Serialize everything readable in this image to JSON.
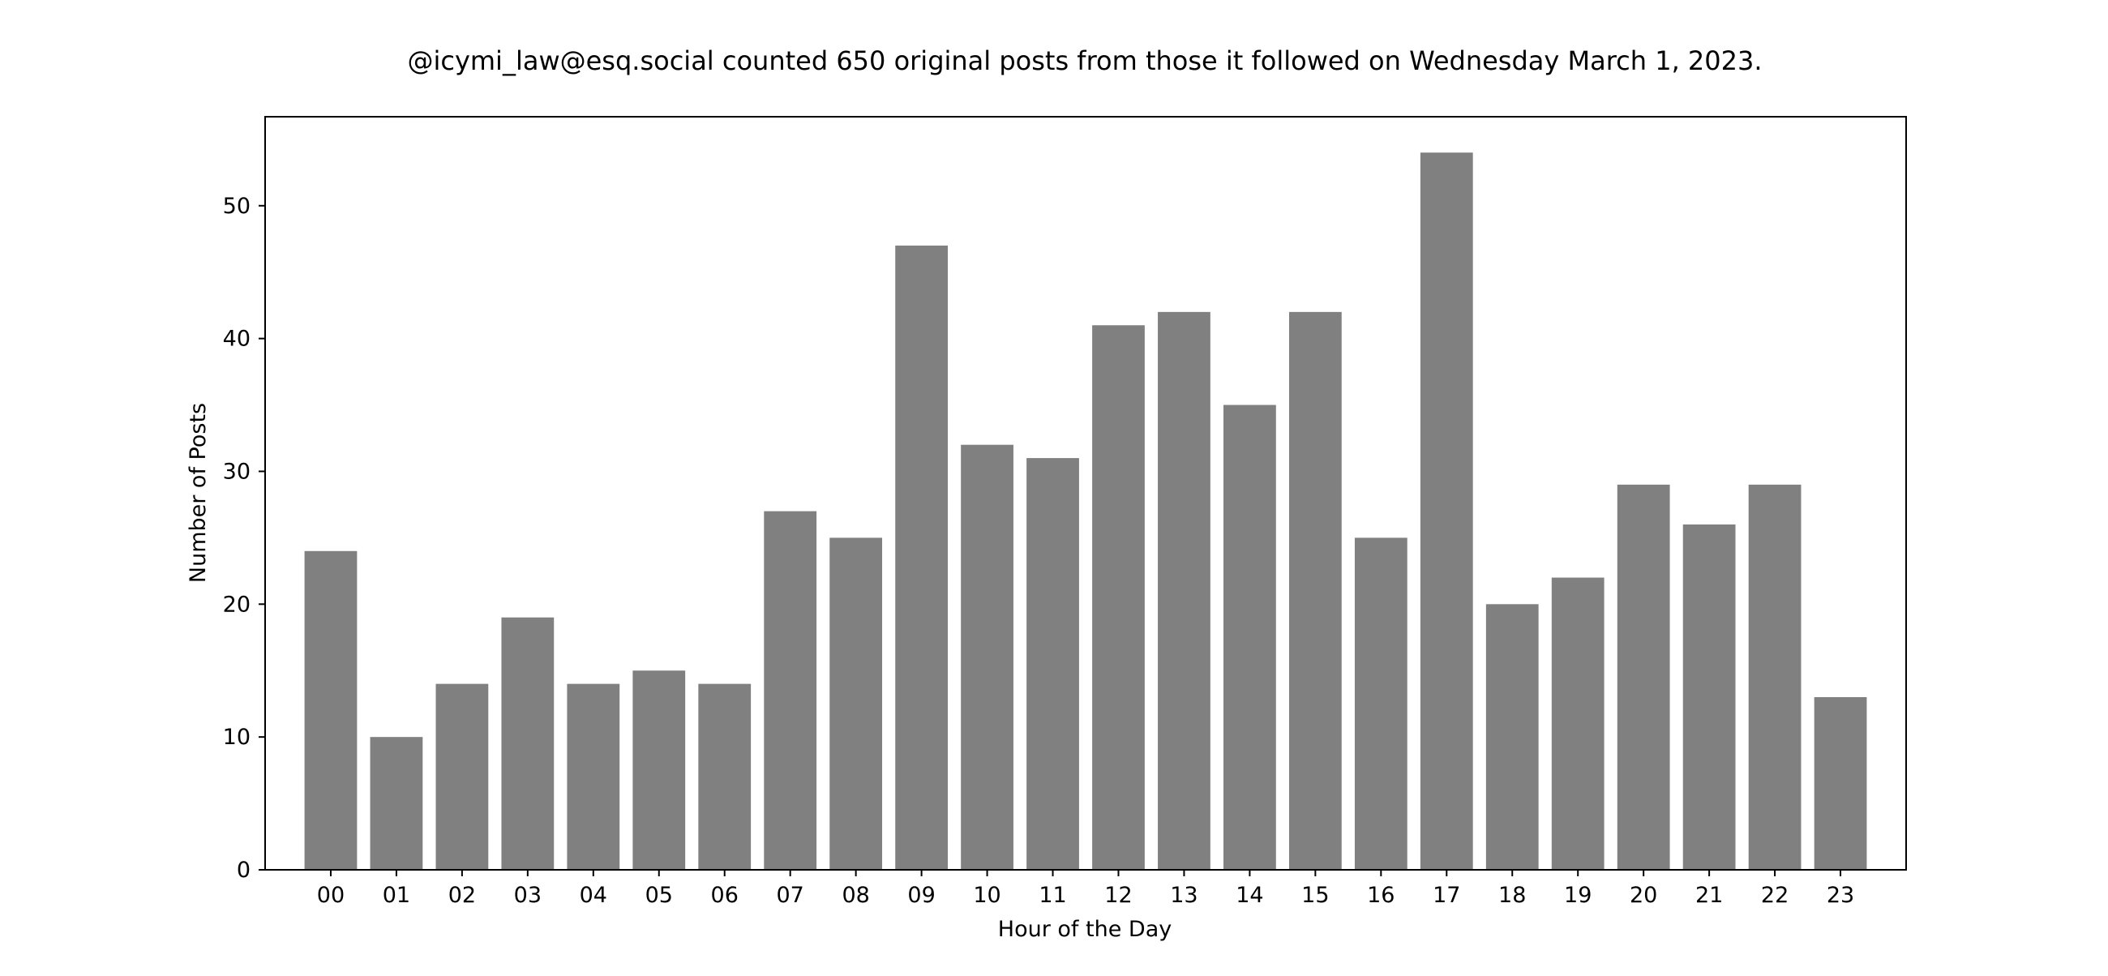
{
  "chart_data": {
    "type": "bar",
    "title": "@icymi_law@esq.social counted 650 original posts from those it followed on Wednesday March 1, 2023.",
    "xlabel": "Hour of the Day",
    "ylabel": "Number of Posts",
    "categories": [
      "00",
      "01",
      "02",
      "03",
      "04",
      "05",
      "06",
      "07",
      "08",
      "09",
      "10",
      "11",
      "12",
      "13",
      "14",
      "15",
      "16",
      "17",
      "18",
      "19",
      "20",
      "21",
      "22",
      "23"
    ],
    "values": [
      24,
      10,
      14,
      19,
      14,
      15,
      14,
      27,
      25,
      47,
      32,
      31,
      41,
      42,
      35,
      42,
      25,
      54,
      20,
      22,
      29,
      26,
      29,
      13
    ],
    "ylim": [
      0,
      56.7
    ],
    "yticks": [
      "0",
      "10",
      "20",
      "30",
      "40",
      "50"
    ],
    "grid": false,
    "legend": "none",
    "colors": {
      "bar": "#808080",
      "axis": "#000000",
      "background": "#ffffff"
    }
  }
}
